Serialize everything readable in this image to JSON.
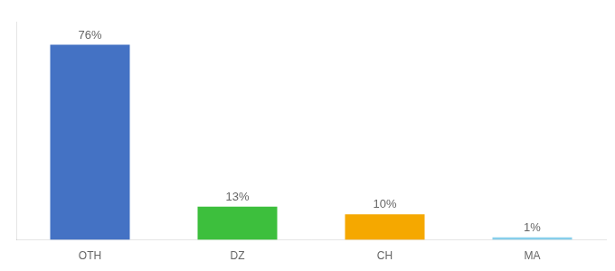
{
  "chart_data": {
    "type": "bar",
    "categories": [
      "OTH",
      "DZ",
      "CH",
      "MA"
    ],
    "values": [
      76,
      13,
      10,
      1
    ],
    "value_labels": [
      "76%",
      "13%",
      "10%",
      "1%"
    ],
    "colors": [
      "#4472c4",
      "#3dbf3d",
      "#f5a800",
      "#87ceeb"
    ],
    "ylim": [
      0,
      85
    ],
    "data_labels": true,
    "tick_labels": "x",
    "grid": false
  }
}
